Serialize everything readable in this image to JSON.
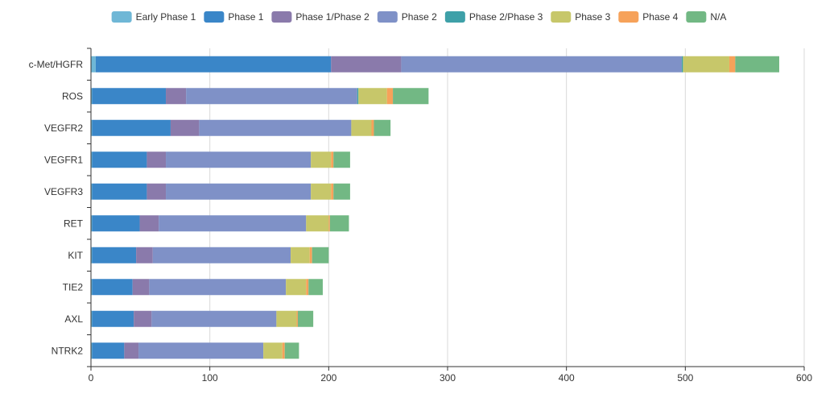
{
  "chart_data": {
    "type": "bar",
    "orientation": "horizontal",
    "stacked": true,
    "categories": [
      "c-Met/HGFR",
      "ROS",
      "VEGFR2",
      "VEGFR1",
      "VEGFR3",
      "RET",
      "KIT",
      "TIE2",
      "AXL",
      "NTRK2"
    ],
    "series": [
      {
        "name": "Early Phase 1",
        "color": "#6fb7d6",
        "values": [
          4,
          1,
          1,
          1,
          1,
          1,
          1,
          1,
          1,
          1
        ]
      },
      {
        "name": "Phase 1",
        "color": "#3a86c8",
        "values": [
          198,
          62,
          66,
          46,
          46,
          40,
          37,
          34,
          35,
          27
        ]
      },
      {
        "name": "Phase 1/Phase 2",
        "color": "#8a7aab",
        "values": [
          59,
          17,
          24,
          16,
          16,
          16,
          14,
          14,
          15,
          12
        ]
      },
      {
        "name": "Phase 2",
        "color": "#7f91c7",
        "values": [
          236,
          144,
          128,
          122,
          122,
          124,
          116,
          115,
          105,
          105
        ]
      },
      {
        "name": "Phase 2/Phase 3",
        "color": "#3ea0a8",
        "values": [
          1,
          1,
          0,
          0,
          0,
          0,
          0,
          0,
          0,
          0
        ]
      },
      {
        "name": "Phase 3",
        "color": "#c7c76a",
        "values": [
          39,
          24,
          17,
          17,
          17,
          19,
          16,
          17,
          17,
          16
        ]
      },
      {
        "name": "Phase 4",
        "color": "#f6a25a",
        "values": [
          5,
          5,
          2,
          2,
          2,
          1,
          2,
          2,
          1,
          2
        ]
      },
      {
        "name": "N/A",
        "color": "#72b884",
        "values": [
          37,
          30,
          14,
          14,
          14,
          16,
          14,
          12,
          13,
          12
        ]
      }
    ],
    "xlim": [
      0,
      600
    ],
    "xticks": [
      0,
      100,
      200,
      300,
      400,
      500,
      600
    ],
    "grid": true,
    "legend_position": "top"
  }
}
